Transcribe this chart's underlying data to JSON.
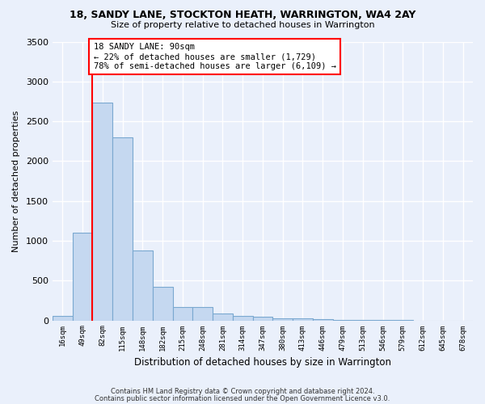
{
  "title": "18, SANDY LANE, STOCKTON HEATH, WARRINGTON, WA4 2AY",
  "subtitle": "Size of property relative to detached houses in Warrington",
  "xlabel": "Distribution of detached houses by size in Warrington",
  "ylabel": "Number of detached properties",
  "categories": [
    "16sqm",
    "49sqm",
    "82sqm",
    "115sqm",
    "148sqm",
    "182sqm",
    "215sqm",
    "248sqm",
    "281sqm",
    "314sqm",
    "347sqm",
    "380sqm",
    "413sqm",
    "446sqm",
    "479sqm",
    "513sqm",
    "546sqm",
    "579sqm",
    "612sqm",
    "645sqm",
    "678sqm"
  ],
  "values": [
    55,
    1100,
    2730,
    2300,
    880,
    425,
    170,
    170,
    90,
    60,
    50,
    30,
    25,
    15,
    10,
    5,
    3,
    2,
    0,
    0,
    0
  ],
  "bar_color": "#c5d8f0",
  "bar_edge_color": "#7aa8d0",
  "vline_color": "red",
  "vline_index": 2,
  "annotation_title": "18 SANDY LANE: 90sqm",
  "annotation_line1": "← 22% of detached houses are smaller (1,729)",
  "annotation_line2": "78% of semi-detached houses are larger (6,109) →",
  "annotation_box_color": "white",
  "annotation_box_edge": "red",
  "ylim": [
    0,
    3500
  ],
  "yticks": [
    0,
    500,
    1000,
    1500,
    2000,
    2500,
    3000,
    3500
  ],
  "background_color": "#eaf0fb",
  "grid_color": "#d8e2f0",
  "footer1": "Contains HM Land Registry data © Crown copyright and database right 2024.",
  "footer2": "Contains public sector information licensed under the Open Government Licence v3.0."
}
